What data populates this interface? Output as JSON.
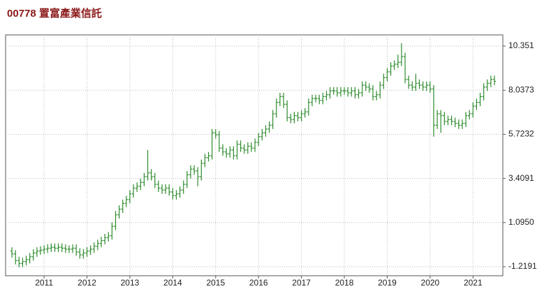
{
  "chart_data": {
    "type": "ohlc",
    "title": "00778  置富產業信託",
    "color": "#2e8b2e",
    "grid": true,
    "categories": [
      null,
      null,
      null,
      null,
      null,
      null,
      null,
      null,
      null,
      "2011",
      null,
      null,
      null,
      null,
      null,
      null,
      null,
      null,
      null,
      null,
      null,
      "2012",
      null,
      null,
      null,
      null,
      null,
      null,
      null,
      null,
      null,
      null,
      null,
      "2013",
      null,
      null,
      null,
      null,
      null,
      null,
      null,
      null,
      null,
      null,
      null,
      "2014",
      null,
      null,
      null,
      null,
      null,
      null,
      null,
      null,
      null,
      null,
      null,
      "2015",
      null,
      null,
      null,
      null,
      null,
      null,
      null,
      null,
      null,
      null,
      null,
      "2016",
      null,
      null,
      null,
      null,
      null,
      null,
      null,
      null,
      null,
      null,
      null,
      "2017",
      null,
      null,
      null,
      null,
      null,
      null,
      null,
      null,
      null,
      null,
      null,
      "2018",
      null,
      null,
      null,
      null,
      null,
      null,
      null,
      null,
      null,
      null,
      null,
      "2019",
      null,
      null,
      null,
      null,
      null,
      null,
      null,
      null,
      null,
      null,
      null,
      "2020",
      null,
      null,
      null,
      null,
      null,
      null,
      null,
      null,
      null,
      null,
      null,
      "2021",
      null,
      null,
      null,
      null,
      null,
      null
    ],
    "open": [
      -0.4,
      -0.55,
      -0.9,
      -1.05,
      -0.95,
      -0.85,
      -0.7,
      -0.5,
      -0.4,
      -0.35,
      -0.3,
      -0.25,
      -0.2,
      -0.25,
      -0.2,
      -0.25,
      -0.3,
      -0.3,
      -0.25,
      -0.45,
      -0.6,
      -0.5,
      -0.4,
      -0.3,
      -0.15,
      0.0,
      0.15,
      0.3,
      0.4,
      0.9,
      1.5,
      1.8,
      2.1,
      2.3,
      2.6,
      2.9,
      3.0,
      3.2,
      3.5,
      3.7,
      3.5,
      3.1,
      2.9,
      2.8,
      2.9,
      2.7,
      2.5,
      2.6,
      2.8,
      3.1,
      3.6,
      3.9,
      3.8,
      3.5,
      4.2,
      4.5,
      4.6,
      5.8,
      5.7,
      5.0,
      4.8,
      4.7,
      4.9,
      4.6,
      5.2,
      5.0,
      4.9,
      5.1,
      5.0,
      5.3,
      5.6,
      5.8,
      6.0,
      6.2,
      6.8,
      7.4,
      7.7,
      7.3,
      6.6,
      6.5,
      6.7,
      6.6,
      6.8,
      6.9,
      7.4,
      7.6,
      7.6,
      7.5,
      7.7,
      7.8,
      8.0,
      8.0,
      7.9,
      8.0,
      8.0,
      7.9,
      8.0,
      7.8,
      7.9,
      8.3,
      8.2,
      8.1,
      7.7,
      7.8,
      8.3,
      8.7,
      9.0,
      9.3,
      9.4,
      9.5,
      9.8,
      8.6,
      8.3,
      8.2,
      8.4,
      8.3,
      8.2,
      8.3,
      8.1,
      6.2,
      6.8,
      6.7,
      6.4,
      6.5,
      6.4,
      6.3,
      6.2,
      6.3,
      6.7,
      6.8,
      7.2,
      7.4,
      7.7,
      8.2,
      8.4,
      8.6
    ],
    "high": [
      -0.2,
      -0.35,
      -0.7,
      -0.75,
      -0.65,
      -0.5,
      -0.3,
      -0.2,
      -0.15,
      -0.1,
      -0.05,
      0.0,
      0.0,
      0.0,
      0.0,
      -0.05,
      -0.1,
      -0.05,
      -0.05,
      -0.25,
      -0.3,
      -0.2,
      -0.1,
      0.05,
      0.2,
      0.35,
      0.5,
      0.6,
      1.1,
      1.7,
      2.0,
      2.3,
      2.5,
      2.8,
      3.1,
      3.2,
      3.4,
      3.7,
      4.9,
      3.9,
      3.7,
      3.3,
      3.1,
      3.1,
      3.1,
      2.9,
      2.8,
      3.0,
      3.3,
      3.8,
      4.1,
      4.1,
      4.0,
      4.4,
      4.7,
      4.8,
      6.0,
      6.0,
      5.9,
      5.2,
      5.0,
      5.1,
      5.1,
      5.4,
      5.4,
      5.2,
      5.3,
      5.3,
      5.5,
      5.8,
      6.0,
      6.2,
      6.4,
      7.0,
      7.6,
      7.9,
      7.9,
      7.5,
      6.8,
      6.9,
      6.9,
      7.0,
      7.1,
      7.6,
      7.8,
      7.8,
      7.8,
      7.9,
      8.0,
      8.2,
      8.2,
      8.2,
      8.2,
      8.2,
      8.2,
      8.2,
      8.2,
      8.1,
      8.5,
      8.5,
      8.4,
      8.3,
      8.0,
      8.5,
      8.9,
      9.2,
      9.5,
      9.6,
      9.9,
      10.5,
      10.0,
      8.8,
      8.5,
      8.9,
      8.6,
      8.5,
      8.5,
      8.5,
      8.3,
      7.0,
      7.0,
      6.9,
      6.7,
      6.7,
      6.6,
      6.5,
      6.5,
      6.9,
      7.0,
      7.4,
      7.6,
      7.9,
      8.4,
      8.6,
      8.8,
      8.8
    ],
    "low": [
      -0.75,
      -1.1,
      -1.25,
      -1.25,
      -1.15,
      -1.05,
      -0.9,
      -0.7,
      -0.6,
      -0.55,
      -0.5,
      -0.45,
      -0.45,
      -0.45,
      -0.45,
      -0.5,
      -0.5,
      -0.5,
      -0.65,
      -0.8,
      -0.8,
      -0.7,
      -0.6,
      -0.5,
      -0.35,
      -0.2,
      -0.05,
      0.1,
      0.2,
      0.7,
      1.3,
      1.6,
      1.9,
      2.1,
      2.4,
      2.7,
      2.8,
      3.0,
      3.3,
      3.3,
      2.9,
      2.7,
      2.6,
      2.6,
      2.5,
      2.3,
      2.3,
      2.4,
      2.6,
      2.9,
      3.4,
      3.6,
      3.0,
      3.3,
      4.0,
      4.3,
      4.4,
      5.5,
      4.8,
      4.6,
      4.5,
      4.5,
      4.4,
      4.4,
      4.8,
      4.7,
      4.7,
      4.8,
      4.8,
      5.1,
      5.4,
      5.6,
      5.8,
      6.0,
      6.6,
      7.2,
      7.1,
      6.4,
      6.3,
      6.3,
      6.4,
      6.4,
      6.6,
      6.7,
      7.2,
      7.4,
      7.3,
      7.3,
      7.5,
      7.6,
      7.8,
      7.7,
      7.7,
      7.8,
      7.7,
      7.7,
      7.6,
      7.6,
      7.7,
      8.0,
      7.9,
      7.5,
      7.5,
      7.6,
      8.1,
      8.5,
      8.8,
      9.1,
      9.2,
      9.3,
      8.4,
      8.1,
      8.0,
      8.0,
      8.1,
      8.0,
      8.0,
      7.9,
      5.6,
      6.0,
      5.8,
      6.2,
      6.2,
      6.2,
      6.1,
      6.0,
      6.0,
      6.1,
      6.5,
      6.6,
      7.0,
      7.2,
      7.5,
      8.0,
      8.2,
      8.3
    ],
    "close": [
      -0.55,
      -0.9,
      -1.05,
      -0.95,
      -0.85,
      -0.7,
      -0.5,
      -0.4,
      -0.35,
      -0.3,
      -0.25,
      -0.2,
      -0.25,
      -0.2,
      -0.25,
      -0.3,
      -0.3,
      -0.25,
      -0.45,
      -0.6,
      -0.5,
      -0.4,
      -0.3,
      -0.15,
      0.0,
      0.15,
      0.3,
      0.4,
      0.9,
      1.5,
      1.8,
      2.1,
      2.3,
      2.6,
      2.9,
      3.0,
      3.2,
      3.5,
      3.7,
      3.5,
      3.1,
      2.9,
      2.8,
      2.9,
      2.7,
      2.5,
      2.6,
      2.8,
      3.1,
      3.6,
      3.9,
      3.8,
      3.5,
      4.2,
      4.5,
      4.6,
      5.8,
      5.7,
      5.0,
      4.8,
      4.7,
      4.9,
      4.6,
      5.2,
      5.0,
      4.9,
      5.1,
      5.0,
      5.3,
      5.6,
      5.8,
      6.0,
      6.2,
      6.8,
      7.4,
      7.7,
      7.3,
      6.6,
      6.5,
      6.7,
      6.6,
      6.8,
      6.9,
      7.4,
      7.6,
      7.6,
      7.5,
      7.7,
      7.8,
      8.0,
      8.0,
      7.9,
      8.0,
      8.0,
      7.9,
      8.0,
      7.8,
      7.9,
      8.3,
      8.2,
      8.1,
      7.7,
      7.8,
      8.3,
      8.7,
      9.0,
      9.3,
      9.4,
      9.5,
      9.8,
      8.6,
      8.3,
      8.2,
      8.4,
      8.3,
      8.2,
      8.3,
      8.1,
      6.2,
      6.8,
      6.7,
      6.4,
      6.5,
      6.4,
      6.3,
      6.2,
      6.3,
      6.7,
      6.8,
      7.2,
      7.4,
      7.7,
      8.2,
      8.4,
      8.6,
      8.5
    ],
    "ylim": [
      -1.695,
      10.937
    ],
    "yticks": [
      10.351,
      8.0373,
      5.7232,
      3.4091,
      {
        "value": 1.095,
        "label": "1.0950"
      },
      -1.2191
    ]
  }
}
